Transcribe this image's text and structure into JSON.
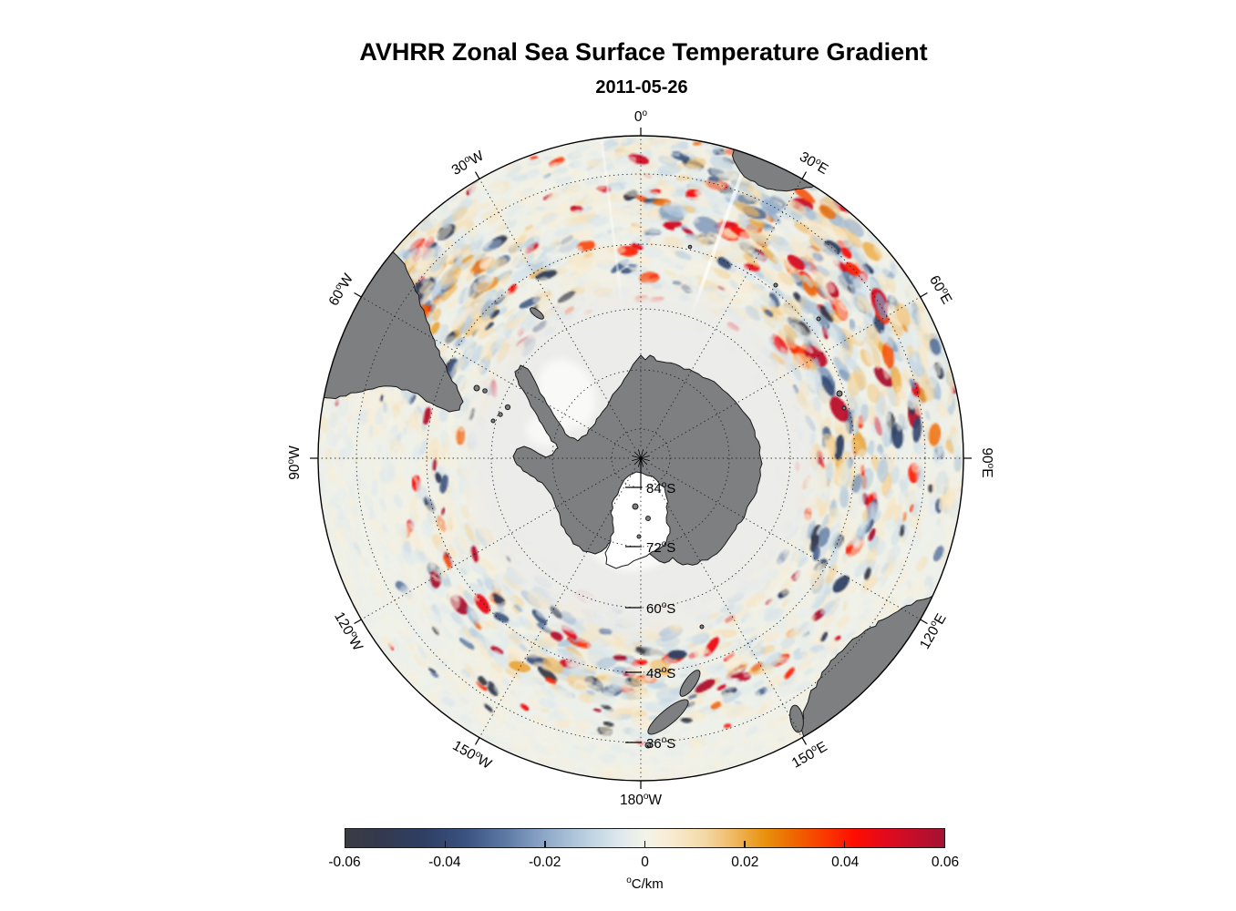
{
  "title": "AVHRR Zonal Sea Surface Temperature Gradient",
  "subtitle": "2011-05-26",
  "chart_data": {
    "type": "heatmap",
    "projection": "south polar stereographic",
    "map_title": "AVHRR Zonal Sea Surface Temperature Gradient",
    "date": "2011-05-26",
    "longitude_labels": [
      "0°",
      "30°E",
      "60°E",
      "90°E",
      "120°E",
      "150°E",
      "180°W",
      "150°W",
      "120°W",
      "90°W",
      "60°W",
      "30°W"
    ],
    "longitude_step_deg": 30,
    "latitude_labels": [
      "84°S",
      "72°S",
      "60°S",
      "48°S",
      "36°S"
    ],
    "latitude_circles_deg": [
      -84,
      -72,
      -60,
      -48,
      -36
    ],
    "outer_boundary_lat_deg": -30,
    "grid": "dotted graticule, meridians every 30 deg, parallels every 12 deg",
    "colorbar": {
      "label": "°C/km",
      "tick_labels": [
        "-0.06",
        "-0.04",
        "-0.02",
        "0",
        "0.02",
        "0.04",
        "0.06"
      ],
      "min": -0.06,
      "max": 0.06,
      "orientation": "horizontal",
      "stops": [
        {
          "pos": 0.0,
          "color": "#3b3c43"
        },
        {
          "pos": 0.06,
          "color": "#333a4f"
        },
        {
          "pos": 0.13,
          "color": "#2e3f63"
        },
        {
          "pos": 0.2,
          "color": "#3a5280"
        },
        {
          "pos": 0.27,
          "color": "#5e7ba6"
        },
        {
          "pos": 0.33,
          "color": "#8ba6c7"
        },
        {
          "pos": 0.4,
          "color": "#b9cfe0"
        },
        {
          "pos": 0.46,
          "color": "#dfe9ed"
        },
        {
          "pos": 0.5,
          "color": "#f2f3e9"
        },
        {
          "pos": 0.54,
          "color": "#f9ecd3"
        },
        {
          "pos": 0.6,
          "color": "#f4d9a7"
        },
        {
          "pos": 0.65,
          "color": "#efb75f"
        },
        {
          "pos": 0.7,
          "color": "#e9920d"
        },
        {
          "pos": 0.75,
          "color": "#ef6500"
        },
        {
          "pos": 0.8,
          "color": "#f93a00"
        },
        {
          "pos": 0.85,
          "color": "#fe0d00"
        },
        {
          "pos": 0.9,
          "color": "#e30a1d"
        },
        {
          "pos": 0.95,
          "color": "#c30e29"
        },
        {
          "pos": 1.0,
          "color": "#a21332"
        }
      ]
    },
    "colors": {
      "land": "#7e7f80",
      "coastline": "#1a1a1a",
      "ocean_base": "#eef0ea",
      "polar_ice_zone": "#ececea",
      "graticule": "#1b1b1b",
      "background": "#ffffff"
    }
  }
}
